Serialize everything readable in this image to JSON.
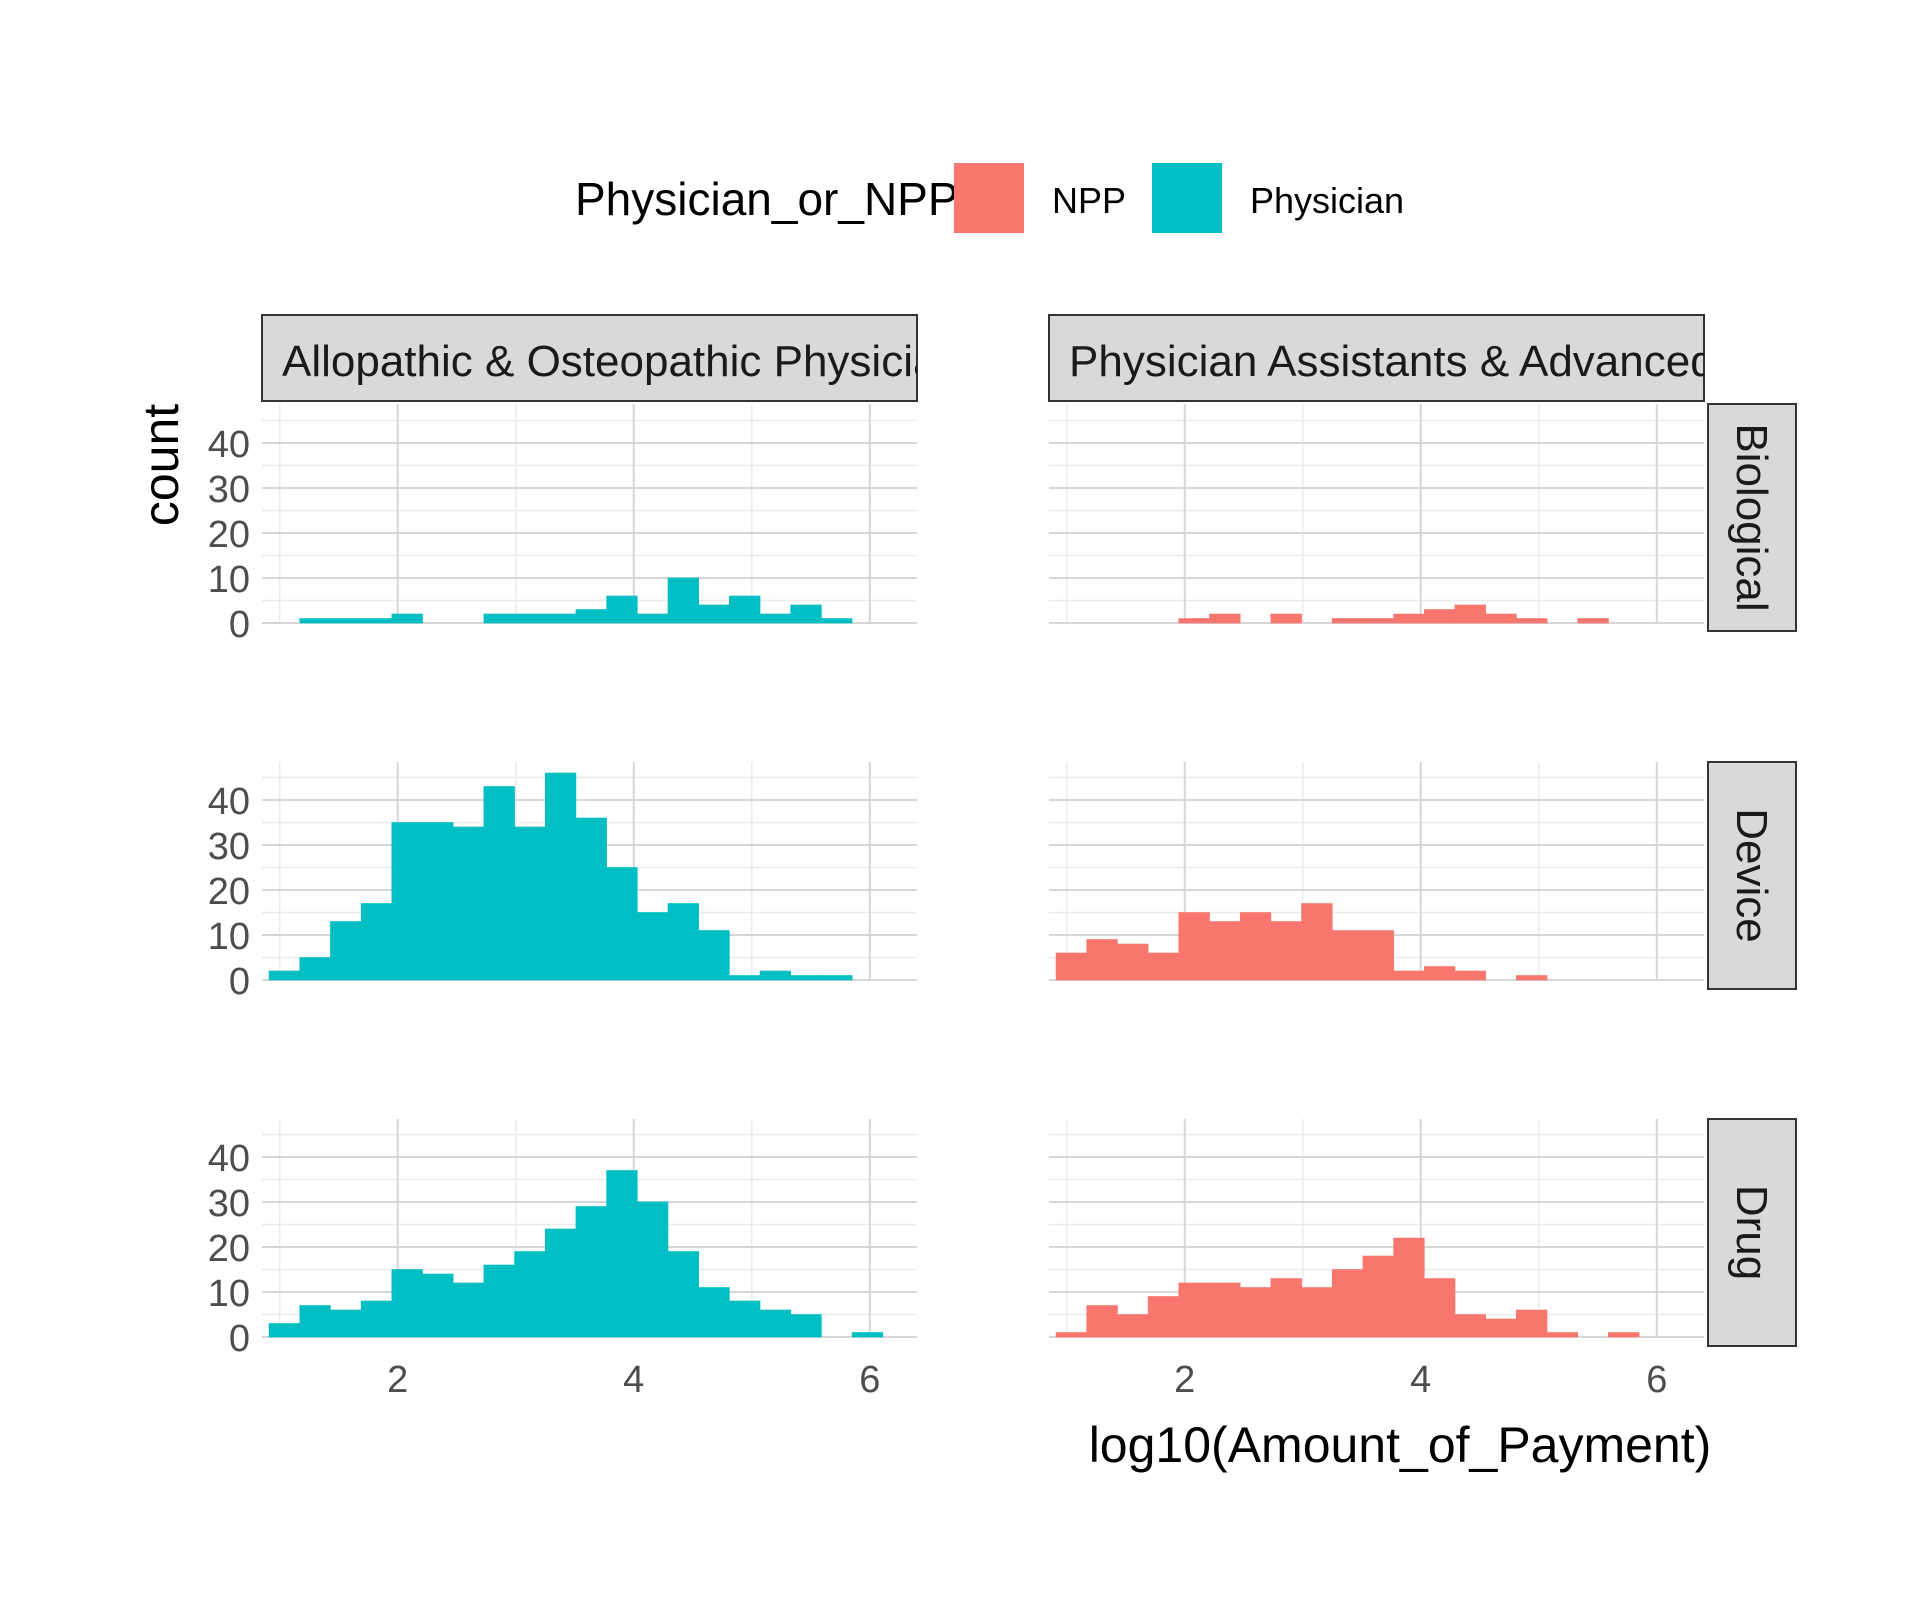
{
  "chart_data": {
    "type": "bar",
    "subtype": "faceted-histogram",
    "xlabel": "log10(Amount_of_Payment)",
    "ylabel": "count",
    "xlim": [
      0.85,
      6.4
    ],
    "ylim": [
      0,
      47
    ],
    "x_ticks": [
      2,
      4,
      6
    ],
    "y_ticks": [
      0,
      10,
      20,
      30,
      40
    ],
    "bin_width": 0.26,
    "bin_start": 0.91,
    "grid": true,
    "legend": {
      "title": "Physician_or_NPP",
      "position": "top",
      "entries": [
        {
          "name": "NPP",
          "color": "#F8766D"
        },
        {
          "name": "Physician",
          "color": "#00BFC4"
        }
      ]
    },
    "column_strips": [
      "Allopathic & Osteopathic Physicia",
      "Physician Assistants & Advanced"
    ],
    "row_strips": [
      "Biological",
      "Device",
      "Drug"
    ],
    "panels": [
      {
        "row": 0,
        "col": 0,
        "series": "Physician",
        "counts": [
          0,
          1,
          1,
          1,
          2,
          0,
          0,
          2,
          2,
          2,
          3,
          6,
          2,
          10,
          4,
          6,
          2,
          4,
          1,
          0,
          0,
          0
        ]
      },
      {
        "row": 0,
        "col": 1,
        "series": "NPP",
        "counts": [
          0,
          0,
          0,
          0,
          1,
          2,
          0,
          2,
          0,
          1,
          1,
          2,
          3,
          4,
          2,
          1,
          0,
          1,
          0,
          0,
          0,
          0
        ]
      },
      {
        "row": 1,
        "col": 0,
        "series": "Physician",
        "counts": [
          2,
          5,
          13,
          17,
          35,
          35,
          34,
          43,
          34,
          46,
          36,
          25,
          15,
          17,
          11,
          1,
          2,
          1,
          1,
          0,
          0,
          0
        ]
      },
      {
        "row": 1,
        "col": 1,
        "series": "NPP",
        "counts": [
          6,
          9,
          8,
          6,
          15,
          13,
          15,
          13,
          17,
          11,
          11,
          2,
          3,
          2,
          0,
          1,
          0,
          0,
          0,
          0,
          0,
          0
        ]
      },
      {
        "row": 2,
        "col": 0,
        "series": "Physician",
        "counts": [
          3,
          7,
          6,
          8,
          15,
          14,
          12,
          16,
          19,
          24,
          29,
          37,
          30,
          19,
          11,
          8,
          6,
          5,
          0,
          1,
          0,
          0
        ]
      },
      {
        "row": 2,
        "col": 1,
        "series": "NPP",
        "counts": [
          1,
          7,
          5,
          9,
          12,
          12,
          11,
          13,
          11,
          15,
          18,
          22,
          13,
          5,
          4,
          6,
          1,
          0,
          1,
          0,
          0,
          0
        ]
      }
    ]
  }
}
